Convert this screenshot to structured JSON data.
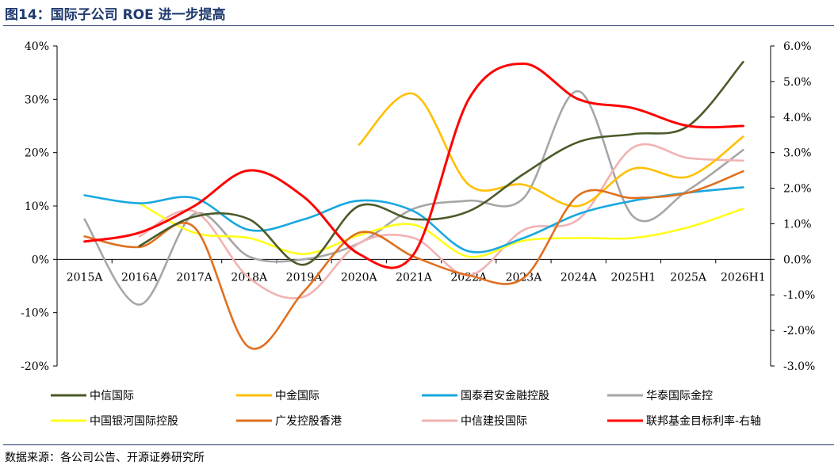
{
  "header": {
    "title": "图14：国际子公司 ROE 进一步提高"
  },
  "footer": {
    "source": "数据来源：各公司公告、开源证券研究所"
  },
  "chart_data": {
    "type": "line",
    "categories": [
      "2015A",
      "2016A",
      "2017A",
      "2018A",
      "2019A",
      "2020A",
      "2021A",
      "2022A",
      "2023A",
      "2024A",
      "2025H1",
      "2025A",
      "2026H1"
    ],
    "y_left": {
      "ylim": [
        -20,
        40
      ],
      "ticks": [
        -20,
        -10,
        0,
        10,
        20,
        30,
        40
      ],
      "tick_labels": [
        "-20%",
        "-10%",
        "0%",
        "10%",
        "20%",
        "30%",
        "40%"
      ]
    },
    "y_right": {
      "ylim": [
        -3.0,
        6.0
      ],
      "ticks": [
        -3,
        -2,
        -1,
        0,
        1,
        2,
        3,
        4,
        5,
        6
      ],
      "tick_labels": [
        "-3.0%",
        "-2.0%",
        "-1.0%",
        "0.0%",
        "1.0%",
        "2.0%",
        "3.0%",
        "4.0%",
        "5.0%",
        "6.0%"
      ]
    },
    "legend_position": "bottom",
    "series": [
      {
        "name": "中信国际",
        "color": "#4a5a28",
        "axis": "left",
        "values": [
          null,
          2.5,
          8.0,
          7.5,
          -1.0,
          10.0,
          7.5,
          9.0,
          16.0,
          22.0,
          23.5,
          25.0,
          37.0
        ]
      },
      {
        "name": "中金国际",
        "color": "#ffbf00",
        "axis": "left",
        "values": [
          null,
          null,
          null,
          null,
          null,
          21.5,
          31.0,
          14.0,
          14.0,
          10.0,
          17.0,
          15.5,
          23.0
        ]
      },
      {
        "name": "国泰君安金融控股",
        "color": "#18a8e0",
        "axis": "left",
        "values": [
          12.0,
          10.5,
          11.5,
          5.5,
          7.5,
          11.0,
          9.0,
          1.5,
          4.0,
          8.5,
          11.0,
          12.5,
          13.5
        ]
      },
      {
        "name": "华泰国际金控",
        "color": "#a6a6a6",
        "axis": "left",
        "values": [
          7.5,
          -8.5,
          8.5,
          0.5,
          0.0,
          3.0,
          9.5,
          11.0,
          11.5,
          31.5,
          8.0,
          13.0,
          20.5
        ]
      },
      {
        "name": "中国银河国际控股",
        "color": "#ffff1a",
        "axis": "left",
        "values": [
          null,
          10.5,
          5.0,
          4.0,
          1.0,
          4.5,
          6.5,
          0.5,
          3.5,
          4.0,
          4.0,
          6.0,
          9.5
        ]
      },
      {
        "name": "广发控股香港",
        "color": "#e07020",
        "axis": "left",
        "values": [
          4.3,
          2.3,
          6.0,
          -16.5,
          -6.0,
          5.0,
          0.5,
          -3.0,
          -3.5,
          12.0,
          11.5,
          12.5,
          16.5
        ]
      },
      {
        "name": "中信建投国际",
        "color": "#f2b2b2",
        "axis": "left",
        "values": [
          null,
          4.3,
          9.0,
          -3.5,
          -7.0,
          3.0,
          4.0,
          -3.0,
          5.5,
          7.5,
          21.0,
          19.0,
          18.5
        ]
      },
      {
        "name": "联邦基金目标利率-右轴",
        "color": "#ff0000",
        "axis": "right",
        "values": [
          0.5,
          0.75,
          1.5,
          2.5,
          1.75,
          0.15,
          0.15,
          4.5,
          5.5,
          4.5,
          4.25,
          3.75,
          3.75
        ]
      }
    ]
  }
}
